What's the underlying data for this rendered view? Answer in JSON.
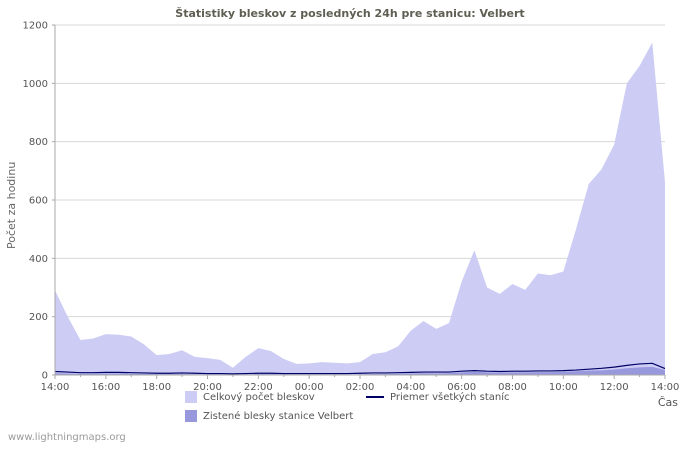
{
  "header": {
    "title": "Štatistiky bleskov z posledných 24h pre stanicu: Velbert"
  },
  "axes": {
    "y_label": "Počet za hodinu",
    "x_label": "Čas"
  },
  "legend": [
    {
      "label": "Celkový počet bleskov",
      "type": "area",
      "color": "#ccccf5"
    },
    {
      "label": "Priemer všetkých staníc",
      "type": "line",
      "color": "#000066"
    },
    {
      "label": "Zistené blesky stanice Velbert",
      "type": "area",
      "color": "#9898dd"
    }
  ],
  "watermark": "www.lightningmaps.org",
  "chart_data": {
    "type": "area",
    "title": "Štatistiky bleskov z posledných 24h pre stanicu: Velbert",
    "xlabel": "Čas",
    "ylabel": "Počet za hodinu",
    "ylim": [
      0,
      1200
    ],
    "ytick_step": 200,
    "grid": true,
    "legend_position": "bottom",
    "x_tick_labels": [
      "14:00",
      "16:00",
      "18:00",
      "20:00",
      "22:00",
      "00:00",
      "02:00",
      "04:00",
      "06:00",
      "08:00",
      "10:00",
      "12:00",
      "14:00"
    ],
    "x_hours": [
      0,
      0.5,
      1,
      1.5,
      2,
      2.5,
      3,
      3.5,
      4,
      4.5,
      5,
      5.5,
      6,
      6.5,
      7,
      7.5,
      8,
      8.5,
      9,
      9.5,
      10,
      10.5,
      11,
      11.5,
      12,
      12.5,
      13,
      13.5,
      14,
      14.5,
      15,
      15.5,
      16,
      16.5,
      17,
      17.5,
      18,
      18.5,
      19,
      19.5,
      20,
      20.5,
      21,
      21.5,
      22,
      22.5,
      23,
      23.5,
      24
    ],
    "series": [
      {
        "name": "Celkový počet bleskov",
        "kind": "area",
        "color": "#ccccf5",
        "values": [
          290,
          200,
          120,
          125,
          140,
          138,
          132,
          105,
          68,
          72,
          85,
          62,
          58,
          52,
          25,
          62,
          92,
          82,
          55,
          38,
          40,
          44,
          42,
          40,
          44,
          72,
          78,
          98,
          152,
          185,
          158,
          178,
          320,
          428,
          300,
          278,
          312,
          292,
          348,
          342,
          355,
          500,
          655,
          705,
          790,
          1000,
          1060,
          1140,
          660
        ]
      },
      {
        "name": "Zistené blesky stanice Velbert",
        "kind": "area",
        "color": "#9898dd",
        "values": [
          6,
          5,
          4,
          4,
          5,
          5,
          4,
          4,
          3,
          3,
          3,
          2,
          2,
          2,
          1,
          2,
          3,
          3,
          2,
          1,
          1,
          1,
          1,
          1,
          2,
          3,
          3,
          4,
          5,
          6,
          5,
          6,
          9,
          11,
          9,
          8,
          9,
          9,
          10,
          10,
          11,
          13,
          15,
          16,
          19,
          23,
          26,
          28,
          17
        ]
      },
      {
        "name": "Priemer všetkých staníc",
        "kind": "line",
        "color": "#000066",
        "values": [
          12,
          10,
          8,
          8,
          9,
          9,
          8,
          7,
          6,
          6,
          7,
          6,
          5,
          5,
          4,
          5,
          6,
          6,
          5,
          5,
          5,
          5,
          5,
          5,
          6,
          7,
          7,
          8,
          9,
          10,
          10,
          10,
          13,
          15,
          13,
          12,
          13,
          13,
          14,
          14,
          15,
          17,
          20,
          23,
          27,
          33,
          38,
          40,
          22
        ]
      }
    ],
    "colors": {
      "grid": "#d8d8d8",
      "axis": "#aaaaaa",
      "tick_text": "#555555"
    }
  }
}
